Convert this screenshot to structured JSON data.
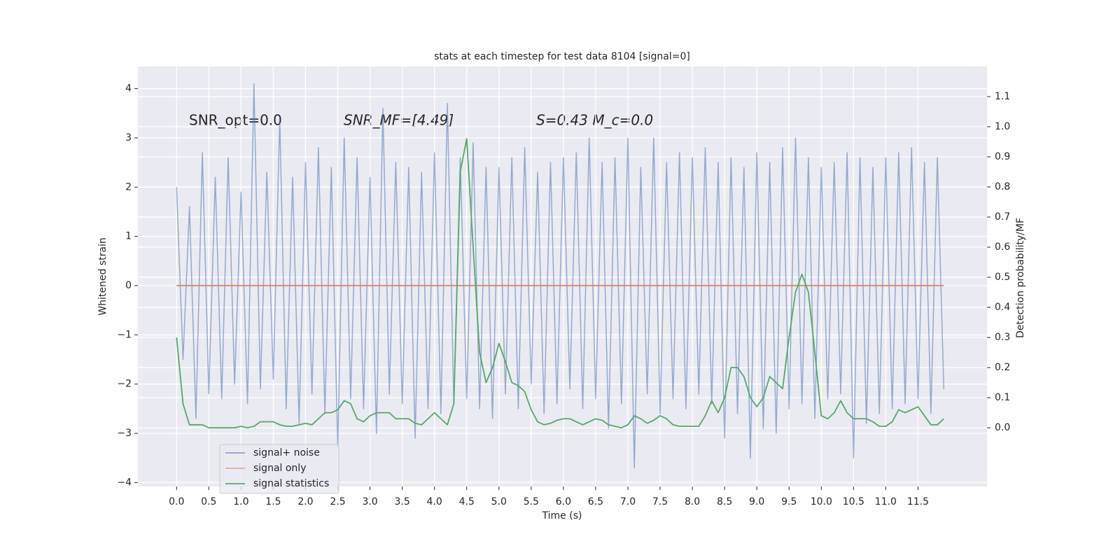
{
  "chart_data": {
    "type": "line",
    "title": "stats at each timestep for test data 8104 [signal=0]",
    "xlabel": "Time (s)",
    "ylabel": "Whitened strain",
    "y2label": "Detection probability/MF",
    "annotations": [
      "SNR_opt=0.0",
      "SNR_MF=[4.49]",
      "S=0.43   M_c=0.0"
    ],
    "x": [
      0,
      0.1,
      0.2,
      0.3,
      0.4,
      0.5,
      0.6,
      0.7,
      0.8,
      0.9,
      1,
      1.1,
      1.2,
      1.3,
      1.4,
      1.5,
      1.6,
      1.7,
      1.8,
      1.9,
      2,
      2.1,
      2.2,
      2.3,
      2.4,
      2.5,
      2.6,
      2.7,
      2.8,
      2.9,
      3,
      3.1,
      3.2,
      3.3,
      3.4,
      3.5,
      3.6,
      3.7,
      3.8,
      3.9,
      4,
      4.1,
      4.2,
      4.3,
      4.4,
      4.5,
      4.6,
      4.7,
      4.8,
      4.9,
      5,
      5.1,
      5.2,
      5.3,
      5.4,
      5.5,
      5.6,
      5.7,
      5.8,
      5.9,
      6,
      6.1,
      6.2,
      6.3,
      6.4,
      6.5,
      6.6,
      6.7,
      6.8,
      6.9,
      7,
      7.1,
      7.2,
      7.3,
      7.4,
      7.5,
      7.6,
      7.7,
      7.8,
      7.9,
      8,
      8.1,
      8.2,
      8.3,
      8.4,
      8.5,
      8.6,
      8.7,
      8.8,
      8.9,
      9,
      9.1,
      9.2,
      9.3,
      9.4,
      9.5,
      9.6,
      9.7,
      9.8,
      9.9,
      10,
      10.1,
      10.2,
      10.3,
      10.4,
      10.5,
      10.6,
      10.7,
      10.8,
      10.9,
      11,
      11.1,
      11.2,
      11.3,
      11.4,
      11.5,
      11.6,
      11.7,
      11.8,
      11.9
    ],
    "series": [
      {
        "name": "signal+ noise",
        "color": "#4c72b0",
        "values": [
          2.0,
          -1.5,
          1.6,
          -2.7,
          2.7,
          -2.2,
          2.2,
          -2.3,
          2.6,
          -2.0,
          1.9,
          -2.4,
          4.1,
          -2.1,
          2.3,
          -1.9,
          3.4,
          -2.5,
          2.2,
          -2.8,
          2.5,
          -2.2,
          2.8,
          -2.6,
          2.4,
          -3.3,
          3.0,
          -2.3,
          2.6,
          -2.5,
          2.2,
          -3.0,
          3.6,
          -2.2,
          2.5,
          -2.4,
          2.4,
          -3.1,
          2.3,
          -2.5,
          2.7,
          -2.6,
          3.7,
          -2.4,
          2.6,
          -2.3,
          2.9,
          -2.5,
          2.4,
          -2.7,
          2.4,
          -2.2,
          2.6,
          -2.5,
          2.8,
          -2.0,
          2.3,
          -2.6,
          2.5,
          -2.4,
          2.6,
          -2.1,
          2.7,
          -2.5,
          3.0,
          -2.3,
          2.5,
          -2.9,
          2.6,
          -2.4,
          3.0,
          -3.7,
          2.4,
          -2.2,
          3.0,
          -2.6,
          2.5,
          -2.3,
          2.7,
          -2.5,
          2.6,
          -2.2,
          2.8,
          -2.4,
          2.5,
          -3.1,
          2.6,
          -2.6,
          2.4,
          -3.5,
          2.7,
          -2.9,
          2.5,
          -3.0,
          2.8,
          -2.5,
          3.0,
          -2.4,
          2.6,
          -2.7,
          2.4,
          -2.3,
          2.5,
          -2.2,
          2.7,
          -3.5,
          2.6,
          -2.8,
          2.4,
          -2.6,
          2.6,
          -2.5,
          2.7,
          -2.4,
          2.8,
          -2.3,
          2.5,
          -2.6,
          2.6,
          -2.1
        ]
      },
      {
        "name": "signal only",
        "color": "#dd8452",
        "x": [
          0,
          11.9
        ],
        "values": [
          0,
          0
        ]
      },
      {
        "name": "signal statistics",
        "color": "#55a868",
        "axis": "y2",
        "values": [
          0.3,
          0.08,
          0.01,
          0.01,
          0.01,
          0.0,
          0.0,
          0.0,
          0.0,
          0.0,
          0.005,
          0.0,
          0.005,
          0.02,
          0.02,
          0.02,
          0.01,
          0.005,
          0.005,
          0.01,
          0.015,
          0.01,
          0.03,
          0.05,
          0.05,
          0.06,
          0.09,
          0.08,
          0.03,
          0.02,
          0.04,
          0.05,
          0.05,
          0.05,
          0.03,
          0.03,
          0.03,
          0.015,
          0.01,
          0.03,
          0.05,
          0.03,
          0.01,
          0.08,
          0.85,
          0.96,
          0.6,
          0.25,
          0.15,
          0.2,
          0.28,
          0.22,
          0.15,
          0.14,
          0.12,
          0.06,
          0.02,
          0.01,
          0.015,
          0.025,
          0.03,
          0.03,
          0.02,
          0.01,
          0.02,
          0.03,
          0.025,
          0.01,
          0.005,
          0.0,
          0.01,
          0.04,
          0.03,
          0.015,
          0.025,
          0.04,
          0.03,
          0.01,
          0.005,
          0.005,
          0.005,
          0.005,
          0.04,
          0.09,
          0.05,
          0.1,
          0.2,
          0.2,
          0.17,
          0.1,
          0.07,
          0.1,
          0.17,
          0.15,
          0.13,
          0.3,
          0.45,
          0.51,
          0.45,
          0.25,
          0.04,
          0.03,
          0.05,
          0.09,
          0.05,
          0.03,
          0.03,
          0.03,
          0.02,
          0.005,
          0.005,
          0.02,
          0.06,
          0.05,
          0.06,
          0.07,
          0.04,
          0.01,
          0.01,
          0.03
        ]
      }
    ],
    "xlim": [
      -0.6,
      12.57
    ],
    "xticks": [
      {
        "value": 0,
        "label": "0.0"
      },
      0.5,
      {
        "value": 1,
        "label": "1.0"
      },
      1.5,
      {
        "value": 2,
        "label": "2.0"
      },
      2.5,
      {
        "value": 3,
        "label": "3.0"
      },
      3.5,
      {
        "value": 4,
        "label": "4.0"
      },
      4.5,
      {
        "value": 5,
        "label": "5.0"
      },
      5.5,
      {
        "value": 6,
        "label": "6.0"
      },
      6.5,
      {
        "value": 7,
        "label": "7.0"
      },
      7.5,
      {
        "value": 8,
        "label": "8.0"
      },
      8.5,
      {
        "value": 9,
        "label": "9.0"
      },
      9.5,
      {
        "value": 10,
        "label": "10.0"
      },
      10.5,
      {
        "value": 11,
        "label": "11.0"
      },
      11.5
    ],
    "ylim": [
      -4.08,
      4.45
    ],
    "yticks": [
      {
        "value": -4,
        "label": "−4"
      },
      {
        "value": -3,
        "label": "−3"
      },
      {
        "value": -2,
        "label": "−2"
      },
      {
        "value": -1,
        "label": "−1"
      },
      0,
      1,
      2,
      3,
      4
    ],
    "y2lim": [
      -0.195,
      1.2
    ],
    "y2ticks": [
      {
        "value": 0,
        "label": "0.0"
      },
      0.1,
      0.2,
      0.3,
      0.4,
      0.5,
      0.6,
      0.7,
      0.8,
      0.9,
      {
        "value": 1,
        "label": "1.0"
      },
      1.1
    ],
    "grid": true,
    "legend": "lower left"
  }
}
